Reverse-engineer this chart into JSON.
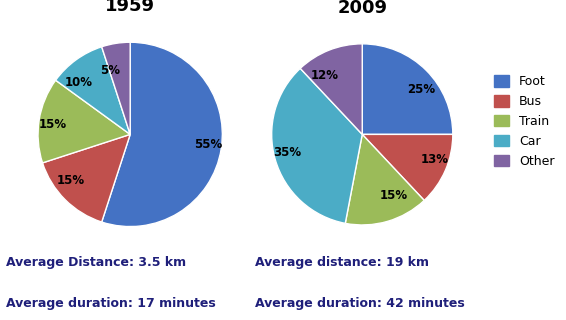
{
  "title_1959": "1959",
  "title_2009": "2009",
  "categories": [
    "Foot",
    "Bus",
    "Train",
    "Car",
    "Other"
  ],
  "colors": [
    "#4472C4",
    "#C0504D",
    "#9BBB59",
    "#4BACC6",
    "#8064A2"
  ],
  "values_1959": [
    55,
    15,
    15,
    10,
    5
  ],
  "values_2009": [
    25,
    13,
    15,
    35,
    12
  ],
  "labels_1959": [
    "55%",
    "15%",
    "15%",
    "10%",
    "5%"
  ],
  "labels_2009": [
    "25%",
    "13%",
    "15%",
    "35%",
    "12%"
  ],
  "startangle_1959": 90,
  "startangle_2009": 90,
  "text_1959_line1": "Average Distance: 3.5 km",
  "text_1959_line2": "Average duration: 17 minutes",
  "text_2009_line1": "Average distance: 19 km",
  "text_2009_line2": "Average duration: 42 minutes",
  "text_color": "#1F1F7A",
  "background_color": "#ffffff",
  "title_fontsize": 13,
  "label_fontsize": 8.5,
  "legend_fontsize": 9,
  "text_fontsize": 9
}
